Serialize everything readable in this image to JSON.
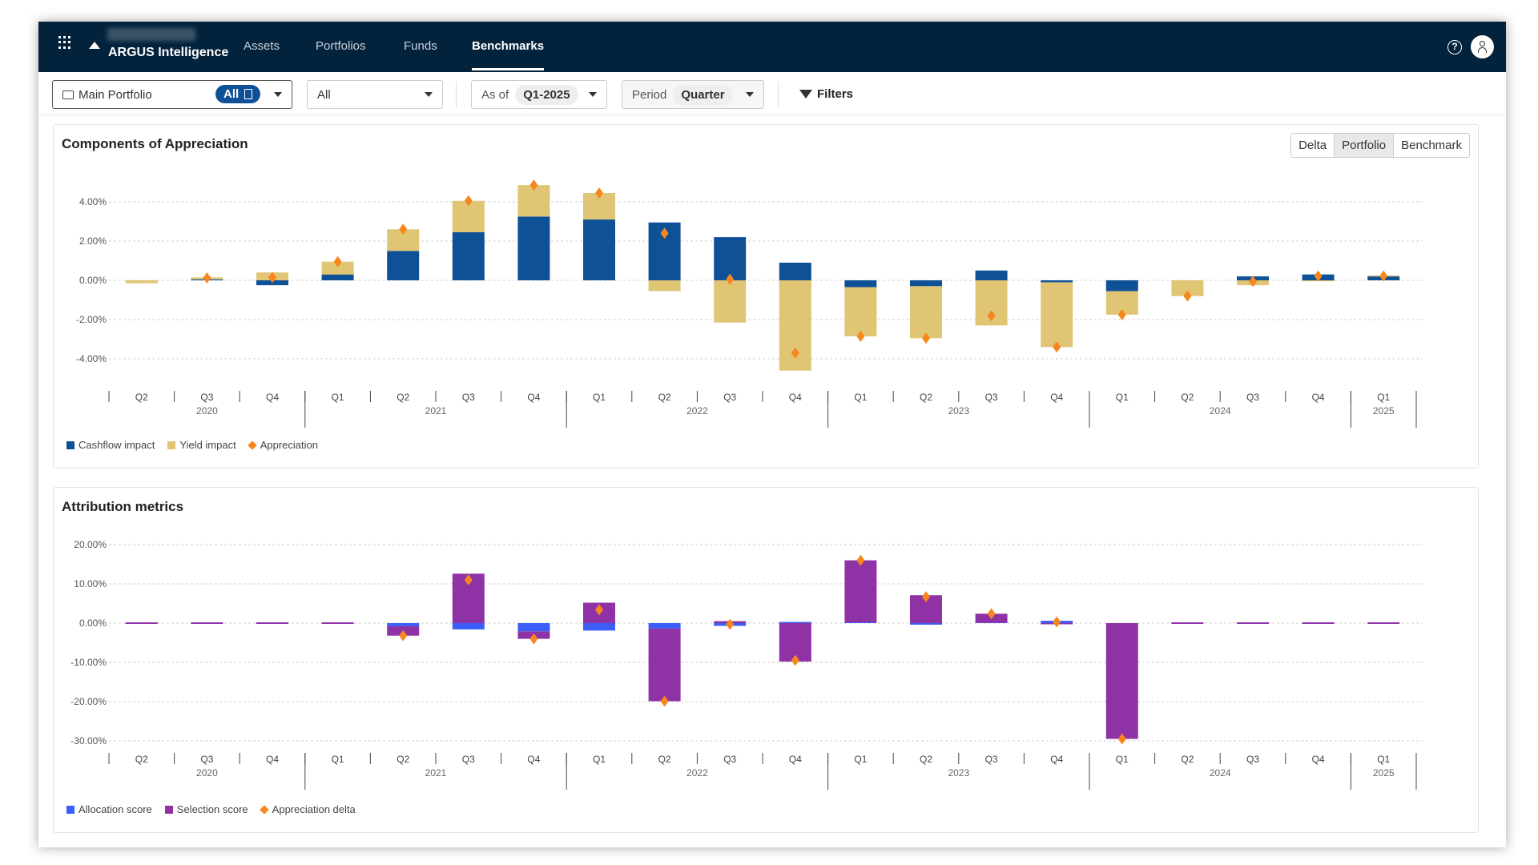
{
  "nav": {
    "brand": "ARGUS Intelligence",
    "items": [
      {
        "label": "Assets",
        "active": false
      },
      {
        "label": "Portfolios",
        "active": false
      },
      {
        "label": "Funds",
        "active": false
      },
      {
        "label": "Benchmarks",
        "active": true
      }
    ]
  },
  "toolbar": {
    "portfolio": "Main Portfolio",
    "portfolio_pill": "All",
    "second": "All",
    "asof_label": "As of",
    "asof_value": "Q1-2025",
    "period_label": "Period",
    "period_value": "Quarter",
    "filters": "Filters"
  },
  "card1": {
    "title": "Components of Appreciation",
    "toggle": [
      "Delta",
      "Portfolio",
      "Benchmark"
    ],
    "toggle_selected": "Portfolio"
  },
  "card2": {
    "title": "Attribution metrics"
  },
  "colors": {
    "nav_bg": "#03233d",
    "cashflow": "#0f5196",
    "yield": "#dfc574",
    "appreciation": "#f7861d",
    "allocation": "#3a5ef7",
    "selection": "#8e32a6"
  },
  "chart_data": [
    {
      "type": "bar",
      "stacked": true,
      "title": "Components of Appreciation",
      "ylim": [
        -5,
        5
      ],
      "yticks": [
        "4.00%",
        "2.00%",
        "0.00%",
        "-2.00%",
        "-4.00%"
      ],
      "ytick_values": [
        4,
        2,
        0,
        -2,
        -4
      ],
      "grid": true,
      "legend": "bottom-left",
      "quarters": [
        "Q2",
        "Q3",
        "Q4",
        "Q1",
        "Q2",
        "Q3",
        "Q4",
        "Q1",
        "Q2",
        "Q3",
        "Q4",
        "Q1",
        "Q2",
        "Q3",
        "Q4",
        "Q1",
        "Q2",
        "Q3",
        "Q4",
        "Q1"
      ],
      "years": [
        {
          "label": "2020",
          "count": 3
        },
        {
          "label": "2021",
          "count": 4
        },
        {
          "label": "2022",
          "count": 4
        },
        {
          "label": "2023",
          "count": 4
        },
        {
          "label": "2024",
          "count": 4
        },
        {
          "label": "2025",
          "count": 1
        }
      ],
      "series": [
        {
          "name": "Cashflow impact",
          "kind": "bar",
          "color": "#0f5196",
          "values": [
            0,
            0.05,
            -0.25,
            0.3,
            1.5,
            2.45,
            3.25,
            3.1,
            2.95,
            2.2,
            0.9,
            -0.35,
            -0.3,
            0.5,
            -0.1,
            -0.55,
            0,
            0.2,
            0.3,
            0.2
          ]
        },
        {
          "name": "Yield impact",
          "kind": "bar",
          "color": "#dfc574",
          "values": [
            -0.15,
            0.1,
            0.4,
            0.65,
            1.1,
            1.6,
            1.6,
            1.35,
            -0.55,
            -2.15,
            -4.6,
            -2.5,
            -2.65,
            -2.3,
            -3.3,
            -1.2,
            -0.8,
            -0.25,
            -0.05,
            0.05
          ]
        },
        {
          "name": "Appreciation",
          "kind": "marker",
          "color": "#f7861d",
          "values": [
            null,
            0.12,
            0.15,
            0.95,
            2.6,
            4.05,
            4.85,
            4.45,
            2.4,
            0.05,
            -3.7,
            -2.85,
            -2.95,
            -1.8,
            -3.4,
            -1.75,
            -0.8,
            -0.05,
            0.22,
            0.22
          ]
        }
      ]
    },
    {
      "type": "bar",
      "stacked": true,
      "title": "Attribution metrics",
      "ylim": [
        -32,
        22
      ],
      "yticks": [
        "20.00%",
        "10.00%",
        "0.00%",
        "-10.00%",
        "-20.00%",
        "-30.00%"
      ],
      "ytick_values": [
        20,
        10,
        0,
        -10,
        -20,
        -30
      ],
      "grid": true,
      "legend": "bottom-left",
      "quarters": [
        "Q2",
        "Q3",
        "Q4",
        "Q1",
        "Q2",
        "Q3",
        "Q4",
        "Q1",
        "Q2",
        "Q3",
        "Q4",
        "Q1",
        "Q2",
        "Q3",
        "Q4",
        "Q1",
        "Q2",
        "Q3",
        "Q4",
        "Q1"
      ],
      "years": [
        {
          "label": "2020",
          "count": 3
        },
        {
          "label": "2021",
          "count": 4
        },
        {
          "label": "2022",
          "count": 4
        },
        {
          "label": "2023",
          "count": 4
        },
        {
          "label": "2024",
          "count": 4
        },
        {
          "label": "2025",
          "count": 1
        }
      ],
      "series": [
        {
          "name": "Allocation score",
          "kind": "bar",
          "color": "#3a5ef7",
          "values": [
            0,
            0,
            0,
            0,
            -0.8,
            -1.6,
            -2.1,
            -1.9,
            -1.4,
            -0.7,
            0.3,
            0.2,
            -0.4,
            0.1,
            0.6,
            0,
            0,
            0,
            0,
            0
          ]
        },
        {
          "name": "Selection score",
          "kind": "bar",
          "color": "#8e32a6",
          "values": [
            0,
            0,
            0,
            0,
            -2.4,
            12.6,
            -1.9,
            5.2,
            -18.5,
            0.5,
            -9.8,
            15.8,
            7.1,
            2.3,
            -0.3,
            -29.5,
            0,
            0,
            0,
            0
          ]
        },
        {
          "name": "Appreciation delta",
          "kind": "marker",
          "color": "#f7861d",
          "values": [
            null,
            null,
            null,
            null,
            -3.2,
            11.0,
            -4.0,
            3.4,
            -19.9,
            -0.3,
            -9.5,
            16.0,
            6.7,
            2.4,
            0.3,
            -29.5,
            null,
            null,
            null,
            null
          ]
        }
      ]
    }
  ]
}
